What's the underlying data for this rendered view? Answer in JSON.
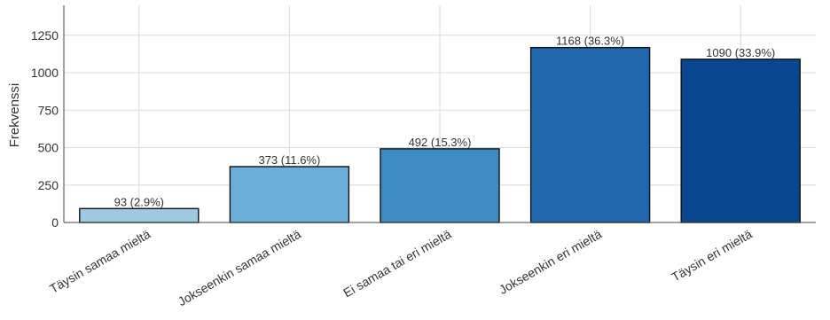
{
  "chart_data": {
    "type": "bar",
    "categories": [
      "Täysin samaa mieltä",
      "Jokseenkin samaa mieltä",
      "Ei samaa tai eri mieltä",
      "Jokseenkin eri mieltä",
      "Täysin eri mieltä"
    ],
    "values": [
      93,
      373,
      492,
      1168,
      1090
    ],
    "data_labels": [
      "93 (2.9%)",
      "373 (11.6%)",
      "492 (15.3%)",
      "1168 (36.3%)",
      "1090 (33.9%)"
    ],
    "bar_colors": [
      "#9ecae1",
      "#6baed6",
      "#3d8bc4",
      "#2067ae",
      "#08468e"
    ],
    "ylabel": "Frekvenssi",
    "xlabel": "",
    "ylim": [
      0,
      1450
    ],
    "yticks": [
      0,
      250,
      500,
      750,
      1000,
      1250
    ],
    "grid": true
  }
}
